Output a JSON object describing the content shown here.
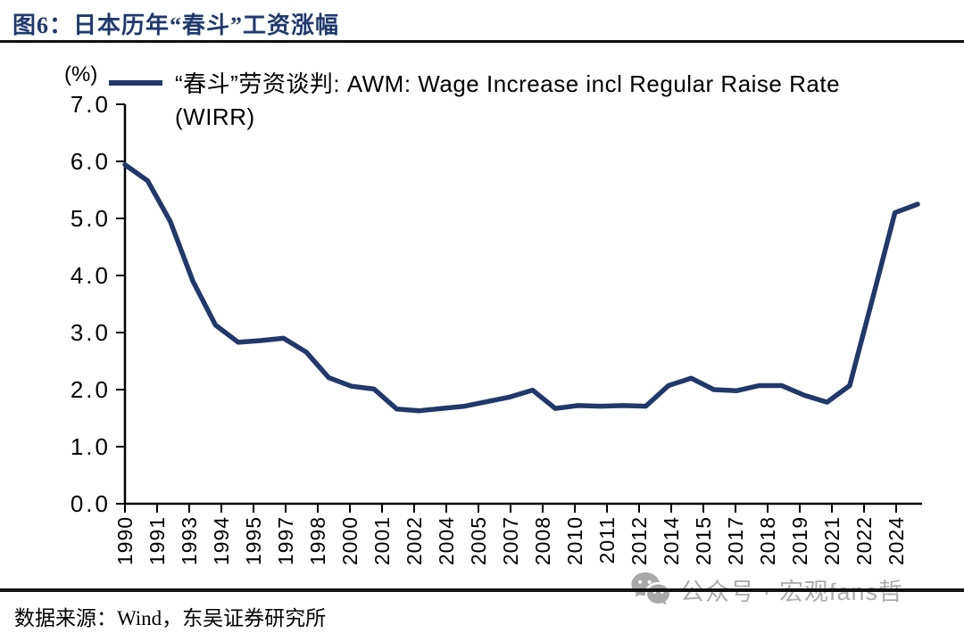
{
  "page": {
    "figure_title": "图6：日本历年“春斗”工资涨幅",
    "source_note": "数据来源：Wind，东吴证券研究所",
    "watermark_text": "公众号 · 宏观fans哲"
  },
  "colors": {
    "accent_navy": "#21386b",
    "title_navy": "#1f3a6e",
    "axis_black": "#000000",
    "watermark_gray": "#adadad"
  },
  "chart_data": {
    "type": "line",
    "title": "",
    "unit_label": "(%)",
    "legend": "“春斗”劳资谈判: AWM: Wage Increase incl Regular Raise Rate (WIRR)",
    "legend_position": "top",
    "grid": false,
    "line_color": "#21386b",
    "ylim": [
      0.0,
      7.0
    ],
    "y_tick_labels": [
      "0.0",
      "1.0",
      "2.0",
      "3.0",
      "4.0",
      "5.0",
      "6.0",
      "7.0"
    ],
    "x_tick_labels": [
      "1990",
      "1991",
      "1993",
      "1994",
      "1995",
      "1997",
      "1998",
      "2000",
      "2001",
      "2002",
      "2004",
      "2005",
      "2007",
      "2008",
      "2010",
      "2011",
      "2012",
      "2014",
      "2015",
      "2017",
      "2018",
      "2019",
      "2021",
      "2022",
      "2024"
    ],
    "x": [
      1990,
      1991,
      1992,
      1993,
      1994,
      1995,
      1996,
      1997,
      1998,
      1999,
      2000,
      2001,
      2002,
      2003,
      2004,
      2005,
      2006,
      2007,
      2008,
      2009,
      2010,
      2011,
      2012,
      2013,
      2014,
      2015,
      2016,
      2017,
      2018,
      2019,
      2020,
      2021,
      2022,
      2023,
      2024,
      2025
    ],
    "values": [
      5.94,
      5.66,
      4.95,
      3.9,
      3.13,
      2.83,
      2.86,
      2.9,
      2.66,
      2.21,
      2.06,
      2.01,
      1.66,
      1.63,
      1.67,
      1.71,
      1.79,
      1.87,
      1.99,
      1.67,
      1.72,
      1.71,
      1.72,
      1.71,
      2.07,
      2.2,
      2.0,
      1.98,
      2.07,
      2.07,
      1.9,
      1.78,
      2.07,
      3.58,
      5.1,
      5.25
    ],
    "xlabel": "",
    "ylabel": ""
  }
}
